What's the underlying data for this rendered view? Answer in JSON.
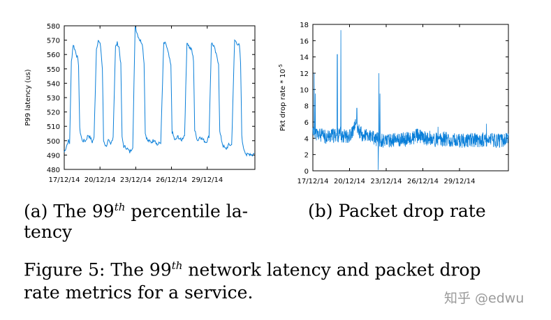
{
  "chart_data": [
    {
      "type": "line",
      "title": "",
      "xlabel": "",
      "ylabel": "P99 latency (us)",
      "ylim": [
        480,
        580
      ],
      "yticks": [
        480,
        490,
        500,
        510,
        520,
        530,
        540,
        550,
        560,
        570,
        580
      ],
      "xticks": [
        "17/12/14",
        "20/12/14",
        "23/12/14",
        "26/12/14",
        "29/12/14"
      ],
      "xlim_days": [
        0,
        15
      ],
      "series": [
        {
          "name": "P99 latency",
          "color": "#0a7fd9",
          "points": [
            [
              0,
              492
            ],
            [
              0.35,
              500
            ],
            [
              0.45,
              498
            ],
            [
              0.6,
              555
            ],
            [
              0.75,
              567
            ],
            [
              0.95,
              562
            ],
            [
              1.1,
              558
            ],
            [
              1.2,
              553
            ],
            [
              1.3,
              508
            ],
            [
              1.5,
              500
            ],
            [
              1.8,
              500
            ],
            [
              2.0,
              504
            ],
            [
              2.2,
              502
            ],
            [
              2.35,
              499
            ],
            [
              2.5,
              502
            ],
            [
              2.7,
              564
            ],
            [
              2.85,
              570
            ],
            [
              3.05,
              566
            ],
            [
              3.2,
              550
            ],
            [
              3.3,
              500
            ],
            [
              3.5,
              496
            ],
            [
              3.7,
              500
            ],
            [
              3.9,
              497
            ],
            [
              4.1,
              503
            ],
            [
              4.3,
              565
            ],
            [
              4.45,
              568
            ],
            [
              4.6,
              565
            ],
            [
              4.75,
              553
            ],
            [
              4.85,
              502
            ],
            [
              5.0,
              496
            ],
            [
              5.25,
              495
            ],
            [
              5.5,
              492
            ],
            [
              5.75,
              496
            ],
            [
              5.95,
              580
            ],
            [
              6.15,
              574
            ],
            [
              6.35,
              570
            ],
            [
              6.55,
              568
            ],
            [
              6.7,
              554
            ],
            [
              6.8,
              505
            ],
            [
              7.0,
              500
            ],
            [
              7.3,
              499
            ],
            [
              7.6,
              501
            ],
            [
              7.8,
              497
            ],
            [
              8.1,
              499
            ],
            [
              8.35,
              568
            ],
            [
              8.55,
              567
            ],
            [
              8.75,
              560
            ],
            [
              8.95,
              552
            ],
            [
              9.05,
              506
            ],
            [
              9.3,
              500
            ],
            [
              9.55,
              503
            ],
            [
              9.8,
              500
            ],
            [
              10.1,
              504
            ],
            [
              10.3,
              569
            ],
            [
              10.5,
              565
            ],
            [
              10.7,
              563
            ],
            [
              10.85,
              556
            ],
            [
              10.95,
              507
            ],
            [
              11.2,
              500
            ],
            [
              11.4,
              503
            ],
            [
              11.6,
              501
            ],
            [
              11.9,
              499
            ],
            [
              12.15,
              503
            ],
            [
              12.35,
              568
            ],
            [
              12.55,
              566
            ],
            [
              12.75,
              560
            ],
            [
              12.95,
              554
            ],
            [
              13.05,
              506
            ],
            [
              13.3,
              497
            ],
            [
              13.55,
              494
            ],
            [
              13.8,
              497
            ],
            [
              14.05,
              497
            ],
            [
              14.3,
              570
            ],
            [
              14.5,
              568
            ],
            [
              14.7,
              566
            ],
            [
              14.8,
              554
            ],
            [
              14.9,
              504
            ],
            [
              15,
              496
            ],
            [
              15.3,
              490
            ],
            [
              15.6,
              491
            ],
            [
              15.8,
              490
            ],
            [
              15.99,
              492
            ]
          ]
        }
      ]
    },
    {
      "type": "line",
      "title": "",
      "xlabel": "",
      "ylabel": "Pkt drop rate * 10",
      "ylabel_exponent": "-5",
      "ylim": [
        0,
        18
      ],
      "yticks": [
        0,
        2,
        4,
        6,
        8,
        10,
        12,
        14,
        16,
        18
      ],
      "xticks": [
        "17/12/14",
        "20/12/14",
        "23/12/14",
        "26/12/14",
        "29/12/14"
      ],
      "xlim_days": [
        0,
        15
      ],
      "series": [
        {
          "name": "Packet drop rate",
          "color": "#0a7fd9",
          "baseline": [
            [
              0,
              5
            ],
            [
              0.3,
              4.5
            ],
            [
              1,
              4.2
            ],
            [
              2,
              4.4
            ],
            [
              3,
              4.3
            ],
            [
              3.5,
              5.5
            ],
            [
              4,
              4.5
            ],
            [
              4.5,
              4.3
            ],
            [
              5,
              4.0
            ],
            [
              5.5,
              3.8
            ],
            [
              6,
              3.7
            ],
            [
              7,
              3.8
            ],
            [
              8,
              3.9
            ],
            [
              8.5,
              4.3
            ],
            [
              9,
              4.1
            ],
            [
              10,
              3.8
            ],
            [
              11,
              3.9
            ],
            [
              12,
              3.7
            ],
            [
              13,
              3.8
            ],
            [
              14,
              3.8
            ],
            [
              15,
              3.7
            ],
            [
              16,
              3.8
            ]
          ],
          "noise_amplitude": 0.9,
          "spikes": [
            [
              0.1,
              12.0
            ],
            [
              0.2,
              9.5
            ],
            [
              2.0,
              14.3
            ],
            [
              2.3,
              17.3
            ],
            [
              3.6,
              7.7
            ],
            [
              5.4,
              12.0
            ],
            [
              5.5,
              9.5
            ],
            [
              5.35,
              0.1
            ]
          ]
        }
      ]
    }
  ],
  "captions": {
    "sub_a_prefix": "(a) The 99",
    "sub_a_sup": "th",
    "sub_a_suffix": " percentile la-",
    "sub_a_line2": "tency",
    "sub_b": "(b) Packet drop rate",
    "figure_prefix": "Figure 5: The 99",
    "figure_sup": "th",
    "figure_suffix": " network latency and packet drop",
    "figure_line2": "rate metrics for a service."
  },
  "watermark": "知乎 @edwu"
}
